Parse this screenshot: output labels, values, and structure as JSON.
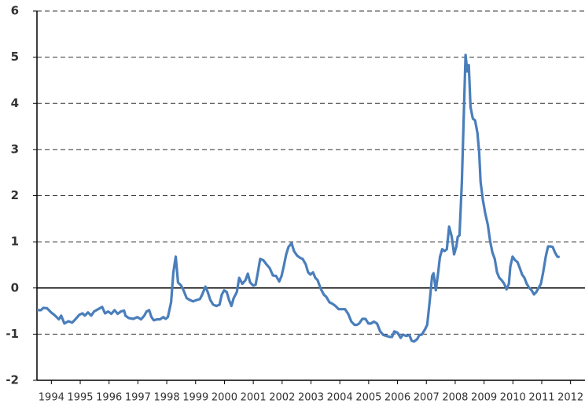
{
  "chart_data": {
    "type": "line",
    "x": [
      1994.0,
      1994.14,
      1994.22,
      1994.35,
      1994.49,
      1994.63,
      1994.76,
      1994.84,
      1994.95,
      1995.09,
      1995.22,
      1995.33,
      1995.47,
      1995.58,
      1995.66,
      1995.77,
      1995.88,
      1995.98,
      1996.12,
      1996.26,
      1996.36,
      1996.47,
      1996.58,
      1996.69,
      1996.8,
      1996.91,
      1997.02,
      1997.07,
      1997.18,
      1997.34,
      1997.48,
      1997.61,
      1997.72,
      1997.8,
      1997.89,
      1997.97,
      1998.05,
      1998.16,
      1998.27,
      1998.38,
      1998.46,
      1998.54,
      1998.65,
      1998.73,
      1998.81,
      1998.89,
      1999.0,
      1999.08,
      1999.19,
      1999.3,
      1999.41,
      1999.54,
      1999.65,
      1999.73,
      1999.84,
      1999.92,
      2000.01,
      2000.11,
      2000.22,
      2000.33,
      2000.41,
      2000.49,
      2000.58,
      2000.66,
      2000.74,
      2000.82,
      2000.93,
      2001.01,
      2001.12,
      2001.23,
      2001.31,
      2001.39,
      2001.5,
      2001.58,
      2001.66,
      2001.74,
      2001.85,
      2001.96,
      2002.07,
      2002.18,
      2002.29,
      2002.4,
      2002.48,
      2002.56,
      2002.64,
      2002.72,
      2002.83,
      2002.91,
      2003.02,
      2003.13,
      2003.21,
      2003.32,
      2003.4,
      2003.48,
      2003.57,
      2003.65,
      2003.73,
      2003.84,
      2003.95,
      2004.03,
      2004.14,
      2004.24,
      2004.35,
      2004.46,
      2004.57,
      2004.68,
      2004.79,
      2004.9,
      2005.01,
      2005.09,
      2005.17,
      2005.28,
      2005.39,
      2005.49,
      2005.58,
      2005.68,
      2005.79,
      2005.9,
      2006.01,
      2006.12,
      2006.23,
      2006.31,
      2006.39,
      2006.5,
      2006.61,
      2006.69,
      2006.8,
      2006.91,
      2006.99,
      2007.07,
      2007.18,
      2007.26,
      2007.34,
      2007.45,
      2007.53,
      2007.61,
      2007.7,
      2007.75,
      2007.83,
      2007.91,
      2007.97,
      2008.05,
      2008.13,
      2008.21,
      2008.29,
      2008.38,
      2008.46,
      2008.54,
      2008.59,
      2008.65,
      2008.73,
      2008.81,
      2008.86,
      2008.92,
      2008.97,
      2009.03,
      2009.11,
      2009.19,
      2009.27,
      2009.33,
      2009.38,
      2009.46,
      2009.54,
      2009.63,
      2009.71,
      2009.79,
      2009.87,
      2009.95,
      2010.03,
      2010.11,
      2010.2,
      2010.28,
      2010.36,
      2010.41,
      2010.49,
      2010.58,
      2010.66,
      2010.74,
      2010.82,
      2010.9,
      2010.98,
      2011.07,
      2011.15,
      2011.23,
      2011.31,
      2011.39,
      2011.47,
      2011.55,
      2011.64,
      2011.72,
      2011.8,
      2011.88,
      2011.96,
      2012.04,
      2012.12
    ],
    "values": [
      -0.48,
      -0.48,
      -0.43,
      -0.44,
      -0.53,
      -0.6,
      -0.68,
      -0.6,
      -0.77,
      -0.72,
      -0.75,
      -0.68,
      -0.58,
      -0.55,
      -0.6,
      -0.53,
      -0.6,
      -0.51,
      -0.46,
      -0.41,
      -0.55,
      -0.51,
      -0.56,
      -0.48,
      -0.56,
      -0.51,
      -0.49,
      -0.6,
      -0.65,
      -0.67,
      -0.63,
      -0.68,
      -0.6,
      -0.51,
      -0.48,
      -0.63,
      -0.7,
      -0.68,
      -0.68,
      -0.63,
      -0.67,
      -0.63,
      -0.31,
      0.34,
      0.68,
      0.12,
      0.05,
      -0.05,
      -0.22,
      -0.26,
      -0.29,
      -0.26,
      -0.24,
      -0.14,
      0.03,
      -0.09,
      -0.26,
      -0.36,
      -0.39,
      -0.36,
      -0.14,
      -0.05,
      -0.09,
      -0.26,
      -0.39,
      -0.22,
      -0.09,
      0.22,
      0.09,
      0.17,
      0.31,
      0.12,
      0.05,
      0.07,
      0.34,
      0.63,
      0.6,
      0.51,
      0.43,
      0.27,
      0.26,
      0.14,
      0.26,
      0.48,
      0.73,
      0.89,
      0.97,
      0.8,
      0.7,
      0.65,
      0.63,
      0.51,
      0.34,
      0.29,
      0.34,
      0.22,
      0.17,
      -0.02,
      -0.15,
      -0.19,
      -0.31,
      -0.34,
      -0.39,
      -0.46,
      -0.46,
      -0.46,
      -0.56,
      -0.73,
      -0.8,
      -0.8,
      -0.77,
      -0.67,
      -0.67,
      -0.77,
      -0.77,
      -0.73,
      -0.77,
      -0.94,
      -1.02,
      -1.04,
      -1.06,
      -1.06,
      -0.94,
      -0.97,
      -1.08,
      -1.01,
      -1.04,
      -1.02,
      -1.14,
      -1.16,
      -1.11,
      -1.02,
      -1.01,
      -0.9,
      -0.8,
      -0.32,
      0.26,
      0.32,
      -0.05,
      0.34,
      0.67,
      0.84,
      0.8,
      0.84,
      1.33,
      1.11,
      0.73,
      0.9,
      1.11,
      1.14,
      2.3,
      4.01,
      5.05,
      4.69,
      4.83,
      3.92,
      3.67,
      3.63,
      3.36,
      2.94,
      2.3,
      1.91,
      1.62,
      1.37,
      1.02,
      0.77,
      0.63,
      0.34,
      0.22,
      0.17,
      0.09,
      -0.03,
      0.09,
      0.46,
      0.68,
      0.6,
      0.56,
      0.43,
      0.29,
      0.22,
      0.09,
      0,
      -0.05,
      -0.14,
      -0.09,
      0,
      0.09,
      0.34,
      0.68,
      0.9,
      0.9,
      0.89,
      0.77,
      0.68,
      0.67
    ],
    "color": "#4a7ebb",
    "xlim": [
      1994,
      2013
    ],
    "xticks": [
      {
        "value": 1994.5,
        "label": "1994"
      },
      {
        "value": 1995.5,
        "label": "1995"
      },
      {
        "value": 1996.5,
        "label": "1996"
      },
      {
        "value": 1997.5,
        "label": "1997"
      },
      {
        "value": 1998.5,
        "label": "1998"
      },
      {
        "value": 1999.5,
        "label": "1999"
      },
      {
        "value": 2000.5,
        "label": "2000"
      },
      {
        "value": 2001.5,
        "label": "2001"
      },
      {
        "value": 2002.5,
        "label": "2002"
      },
      {
        "value": 2003.5,
        "label": "2003"
      },
      {
        "value": 2004.5,
        "label": "2004"
      },
      {
        "value": 2005.5,
        "label": "2005"
      },
      {
        "value": 2006.5,
        "label": "2006"
      },
      {
        "value": 2007.5,
        "label": "2007"
      },
      {
        "value": 2008.5,
        "label": "2008"
      },
      {
        "value": 2009.5,
        "label": "2009"
      },
      {
        "value": 2010.5,
        "label": "2010"
      },
      {
        "value": 2011.5,
        "label": "2011"
      },
      {
        "value": 2012.5,
        "label": "2012"
      }
    ],
    "ylim": [
      -2,
      6
    ],
    "yticks": [
      -2,
      -1,
      0,
      1,
      2,
      3,
      4,
      5,
      6
    ],
    "grid": true
  }
}
